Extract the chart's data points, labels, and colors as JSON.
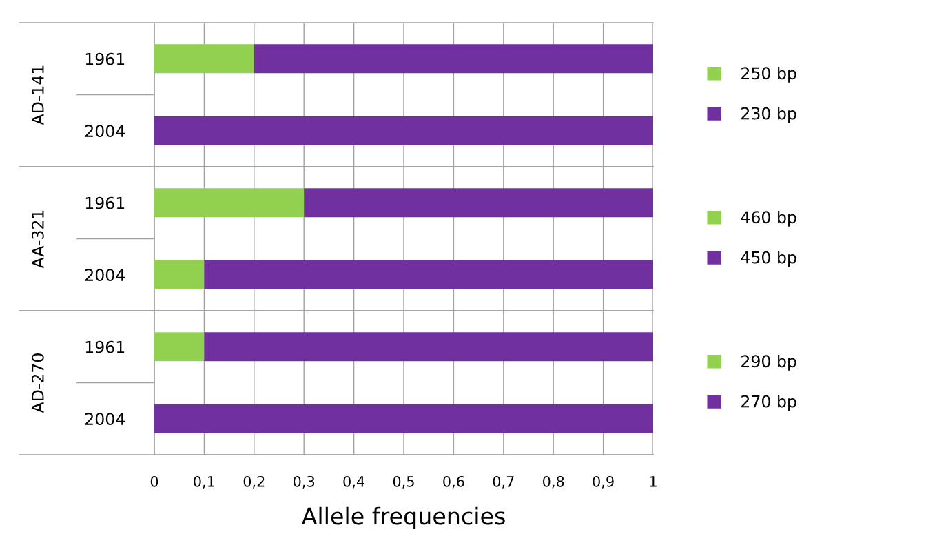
{
  "chart_data": [
    {
      "type": "bar",
      "orientation": "horizontal",
      "stacked": true,
      "ylabel": "AD-141",
      "categories": [
        "1961",
        "2004"
      ],
      "xlim": [
        0,
        1
      ],
      "xticks": [
        0,
        0.1,
        0.2,
        0.3,
        0.4,
        0.5,
        0.6,
        0.7,
        0.8,
        0.9,
        1
      ],
      "tick_labels": "y",
      "grid": "x",
      "legend": "right",
      "series": [
        {
          "name": "250 bp",
          "color": "#92d050",
          "values": [
            0.2,
            0
          ]
        },
        {
          "name": "230 bp",
          "color": "#7030a0",
          "values": [
            0.8,
            1
          ]
        }
      ]
    },
    {
      "type": "bar",
      "orientation": "horizontal",
      "stacked": true,
      "ylabel": "AA-321",
      "categories": [
        "1961",
        "2004"
      ],
      "xlim": [
        0,
        1
      ],
      "xticks": [
        0,
        0.1,
        0.2,
        0.3,
        0.4,
        0.5,
        0.6,
        0.7,
        0.8,
        0.9,
        1
      ],
      "tick_labels": "y",
      "grid": "x",
      "legend": "right",
      "series": [
        {
          "name": "460 bp",
          "color": "#92d050",
          "values": [
            0.3,
            0.1
          ]
        },
        {
          "name": "450 bp",
          "color": "#7030a0",
          "values": [
            0.7,
            0.9
          ]
        }
      ]
    },
    {
      "type": "bar",
      "orientation": "horizontal",
      "stacked": true,
      "ylabel": "AD-270",
      "xlabel": "Allele frequencies",
      "categories": [
        "1961",
        "2004"
      ],
      "xlim": [
        0,
        1
      ],
      "xticks": [
        {
          "value": 0,
          "label": "0"
        },
        {
          "value": 0.1,
          "label": "0,1"
        },
        {
          "value": 0.2,
          "label": "0,2"
        },
        {
          "value": 0.3,
          "label": "0,3"
        },
        {
          "value": 0.4,
          "label": "0,4"
        },
        {
          "value": 0.5,
          "label": "0,5"
        },
        {
          "value": 0.6,
          "label": "0,6"
        },
        {
          "value": 0.7,
          "label": "0,7"
        },
        {
          "value": 0.8,
          "label": "0,8"
        },
        {
          "value": 0.9,
          "label": "0,9"
        },
        {
          "value": 1,
          "label": "1"
        }
      ],
      "grid": "x",
      "legend": "right",
      "series": [
        {
          "name": "290 bp",
          "color": "#92d050",
          "values": [
            0.1,
            0
          ]
        },
        {
          "name": "270 bp",
          "color": "#7030a0",
          "values": [
            0.9,
            1
          ]
        }
      ]
    }
  ]
}
